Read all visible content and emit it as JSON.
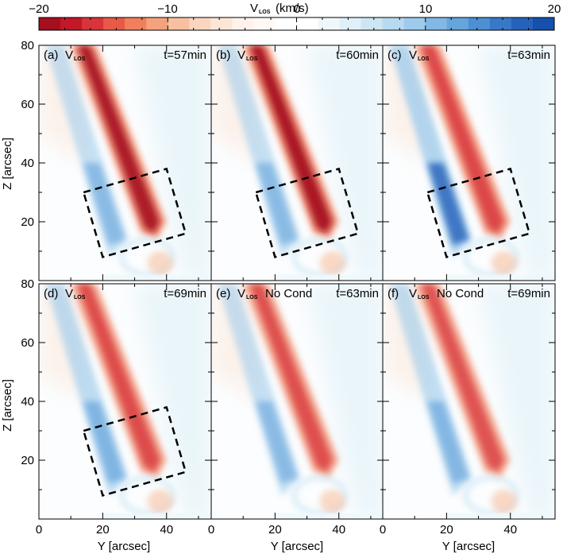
{
  "chart_data": {
    "type": "heatmap",
    "colorbar": {
      "title_main": "V",
      "title_sub": "LOS",
      "title_unit": "(km/s)",
      "range": [
        -20,
        20
      ],
      "ticks": [
        "−20",
        "−10",
        "0",
        "10",
        "20"
      ],
      "tick_values": [
        -20,
        -10,
        0,
        10,
        20
      ],
      "n_bins": 24,
      "colors_neg": [
        "#a50f1e",
        "#c21828",
        "#d8353a",
        "#e85a48",
        "#f0805c",
        "#f5a27c",
        "#f8c0a0",
        "#fad6c0",
        "#fce6d8",
        "#fef2ea",
        "#fff8f4",
        "#ffffff"
      ],
      "colors_pos": [
        "#ffffff",
        "#eef8fb",
        "#dff0f8",
        "#cde6f4",
        "#b7daf0",
        "#9ecbeb",
        "#82b8e4",
        "#66a4dc",
        "#4d8fd3",
        "#3779c8",
        "#2563bb",
        "#1550ad"
      ]
    },
    "xaxis": {
      "label": "Y [arcsec]",
      "range": [
        0,
        54
      ],
      "ticks": [
        "0",
        "20",
        "40"
      ],
      "tick_values": [
        0,
        20,
        40
      ]
    },
    "yaxis": {
      "label": "Z [arcsec]",
      "range": [
        0,
        80
      ],
      "ticks": [
        "20",
        "40",
        "60",
        "80"
      ],
      "tick_values": [
        20,
        40,
        60,
        80
      ]
    },
    "panels": [
      {
        "letter": "(a)",
        "quantity": "V",
        "sub": "LOS",
        "extra": "",
        "time": "t=57min",
        "red_intensity": 0.9,
        "blue_intensity": 0.45,
        "box": true,
        "box_corners": [
          [
            14,
            30
          ],
          [
            40,
            38
          ],
          [
            46,
            16
          ],
          [
            20,
            8
          ]
        ]
      },
      {
        "letter": "(b)",
        "quantity": "V",
        "sub": "LOS",
        "extra": "",
        "time": "t=60min",
        "red_intensity": 0.95,
        "blue_intensity": 0.45,
        "box": true,
        "box_corners": [
          [
            14,
            30
          ],
          [
            40,
            38
          ],
          [
            46,
            16
          ],
          [
            20,
            8
          ]
        ]
      },
      {
        "letter": "(c)",
        "quantity": "V",
        "sub": "LOS",
        "extra": "",
        "time": "t=63min",
        "red_intensity": 0.8,
        "blue_intensity": 0.85,
        "box": true,
        "box_corners": [
          [
            14,
            30
          ],
          [
            40,
            38
          ],
          [
            46,
            16
          ],
          [
            20,
            8
          ]
        ]
      },
      {
        "letter": "(d)",
        "quantity": "V",
        "sub": "LOS",
        "extra": "",
        "time": "t=69min",
        "red_intensity": 0.75,
        "blue_intensity": 0.6,
        "box": true,
        "box_corners": [
          [
            14,
            30
          ],
          [
            40,
            38
          ],
          [
            46,
            16
          ],
          [
            20,
            8
          ]
        ]
      },
      {
        "letter": "(e)",
        "quantity": "V",
        "sub": "LOS",
        "extra": "No Cond",
        "time": "t=63min",
        "red_intensity": 0.7,
        "blue_intensity": 0.45,
        "box": false,
        "box_corners": []
      },
      {
        "letter": "(f)",
        "quantity": "V",
        "sub": "LOS",
        "extra": "No Cond",
        "time": "t=69min",
        "red_intensity": 0.65,
        "blue_intensity": 0.55,
        "box": false,
        "box_corners": []
      }
    ]
  }
}
